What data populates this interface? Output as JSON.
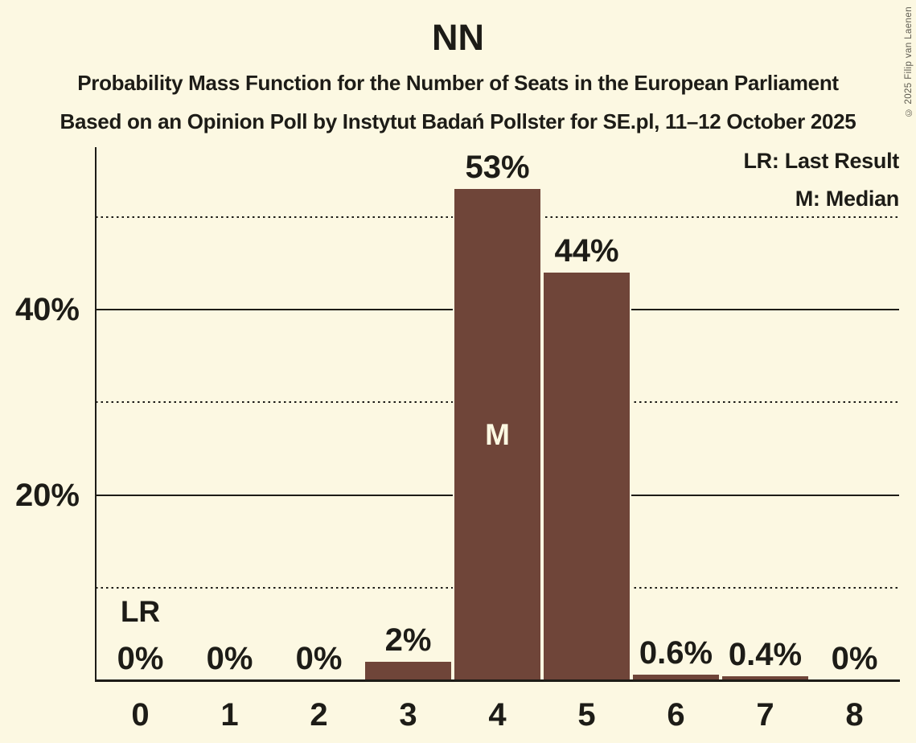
{
  "page": {
    "title": "NN",
    "subtitle": "Probability Mass Function for the Number of Seats in the European Parliament",
    "source": "Based on an Opinion Poll by Instytut Badań Pollster for SE.pl, 11–12 October 2025",
    "copyright": "© 2025 Filip van Laenen"
  },
  "legend": {
    "lr": "LR: Last Result",
    "m": "M: Median"
  },
  "colors": {
    "background": "#FCF8E2",
    "bar": "#6F4539",
    "text": "#1D1C17",
    "copyright": "#5E5B50"
  },
  "chart_data": {
    "type": "bar",
    "title": "NN",
    "subtitle": "Probability Mass Function for the Number of Seats in the European Parliament",
    "source": "Based on an Opinion Poll by Instytut Badań Pollster for SE.pl, 11–12 October 2025",
    "xlabel": "",
    "ylabel": "",
    "categories": [
      "0",
      "1",
      "2",
      "3",
      "4",
      "5",
      "6",
      "7",
      "8"
    ],
    "values": [
      0,
      0,
      0,
      2,
      53,
      44,
      0.6,
      0.4,
      0
    ],
    "bar_labels": [
      "0%",
      "0%",
      "0%",
      "2%",
      "53%",
      "44%",
      "0.6%",
      "0.4%",
      "0%"
    ],
    "ylim": [
      0,
      57.5
    ],
    "grid": "horizontal",
    "y_solid_gridlines": [
      20,
      40
    ],
    "y_dotted_gridlines": [
      10,
      30,
      50
    ],
    "y_tick_labels": [
      {
        "value": 20,
        "label": "20%"
      },
      {
        "value": 40,
        "label": "40%"
      }
    ],
    "legend_position": "top-right",
    "legend_entries": [
      "LR: Last Result",
      "M: Median"
    ],
    "annotations": [
      {
        "type": "last_result",
        "label": "LR",
        "category": "0"
      },
      {
        "type": "median",
        "label": "M",
        "category": "4"
      }
    ]
  }
}
